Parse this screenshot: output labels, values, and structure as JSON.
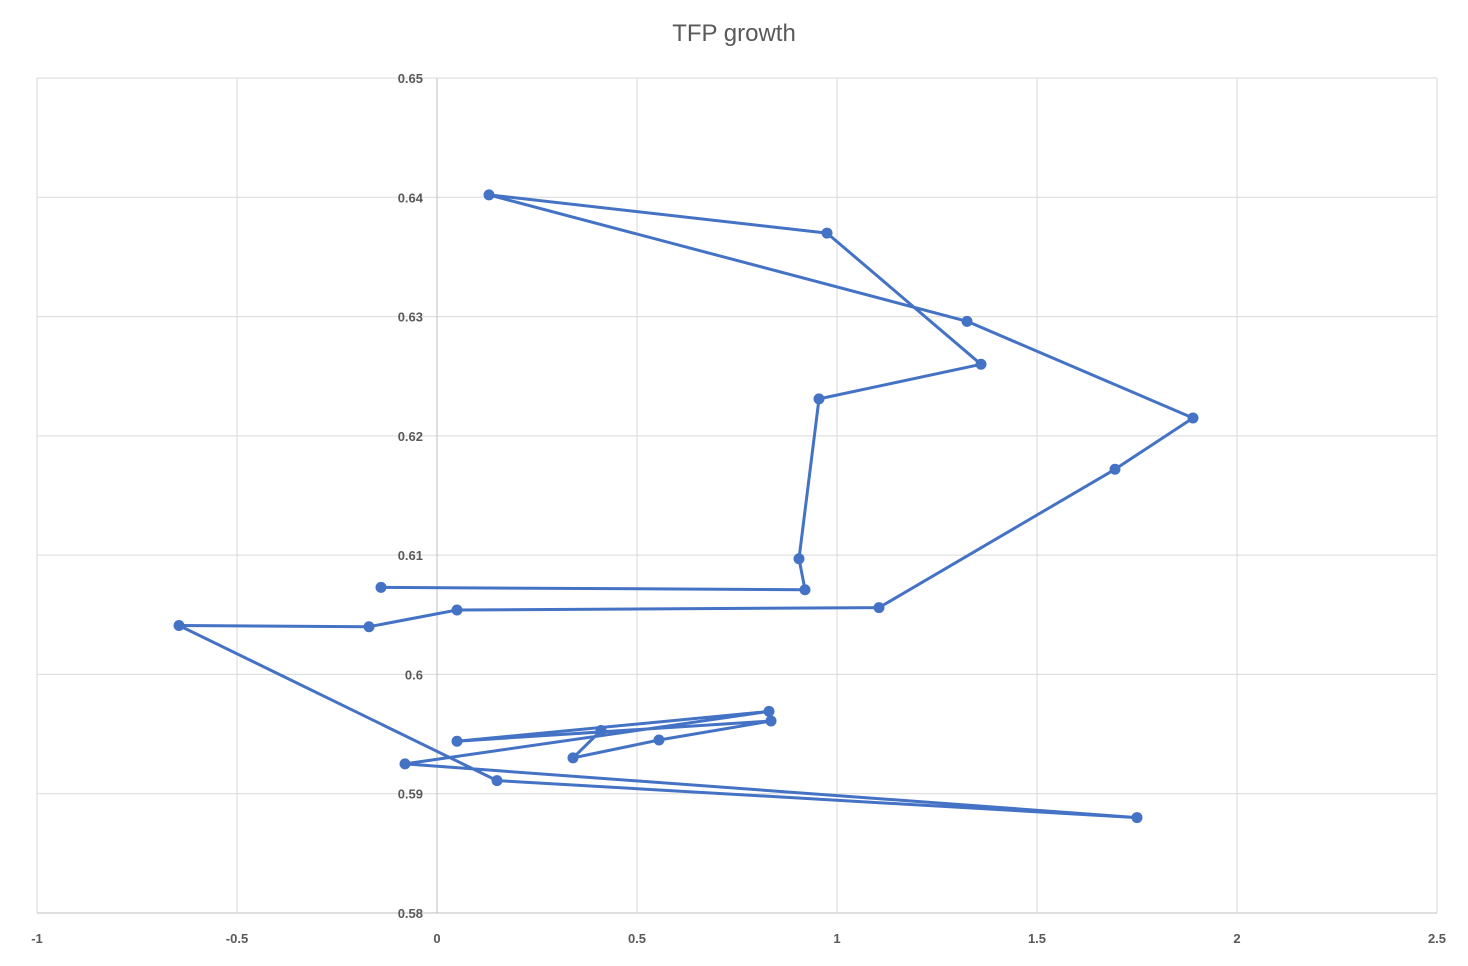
{
  "chart_data": {
    "type": "scatter",
    "title": "TFP growth",
    "xlabel": "",
    "ylabel": "",
    "xlim": [
      -1,
      2.5
    ],
    "ylim": [
      0.58,
      0.65
    ],
    "x_ticks": [
      "-1",
      "-0.5",
      "0",
      "0.5",
      "1",
      "1.5",
      "2",
      "2.5"
    ],
    "y_ticks": [
      "0.58",
      "0.59",
      "0.6",
      "0.61",
      "0.62",
      "0.63",
      "0.64",
      "0.65"
    ],
    "x_tick_values": [
      -1,
      -0.5,
      0,
      0.5,
      1,
      1.5,
      2,
      2.5
    ],
    "y_tick_values": [
      0.58,
      0.59,
      0.6,
      0.61,
      0.62,
      0.63,
      0.64,
      0.65
    ],
    "grid": true,
    "legend": "none",
    "line_style": "straight lines with markers",
    "series_color": "#4472C4",
    "series": [
      {
        "name": "",
        "points": [
          [
            -0.14,
            0.6073
          ],
          [
            0.92,
            0.6071
          ],
          [
            0.905,
            0.6097
          ],
          [
            0.955,
            0.6231
          ],
          [
            1.36,
            0.626
          ],
          [
            0.975,
            0.637
          ],
          [
            0.13,
            0.6402
          ],
          [
            1.325,
            0.6296
          ],
          [
            1.89,
            0.6215
          ],
          [
            1.695,
            0.6172
          ],
          [
            1.105,
            0.6056
          ],
          [
            0.05,
            0.6054
          ],
          [
            -0.17,
            0.604
          ],
          [
            -0.645,
            0.6041
          ],
          [
            0.15,
            0.5911
          ],
          [
            1.75,
            0.588
          ],
          [
            -0.08,
            0.5925
          ],
          [
            0.83,
            0.5969
          ],
          [
            0.05,
            0.5944
          ],
          [
            0.835,
            0.5961
          ],
          [
            0.555,
            0.5945
          ],
          [
            0.34,
            0.593
          ],
          [
            0.41,
            0.5953
          ]
        ]
      }
    ]
  }
}
